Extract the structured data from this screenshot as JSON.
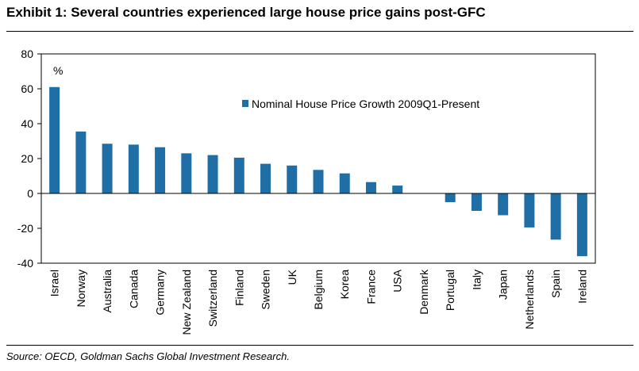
{
  "title": "Exhibit 1: Several countries experienced large house price gains post-GFC",
  "source": "Source: OECD, Goldman Sachs Global Investment Research.",
  "chart_data": {
    "type": "bar",
    "unit_label": "%",
    "categories": [
      "Israel",
      "Norway",
      "Australia",
      "Canada",
      "Germany",
      "New Zealand",
      "Switzerland",
      "Finland",
      "Sweden",
      "UK",
      "Belgium",
      "Korea",
      "France",
      "USA",
      "Denmark",
      "Portugal",
      "Italy",
      "Japan",
      "Netherlands",
      "Spain",
      "Ireland"
    ],
    "series": [
      {
        "name": "Nominal House Price Growth 2009Q1-Present",
        "color": "#1f6fa6",
        "values": [
          61,
          35.5,
          28.5,
          28,
          26.5,
          23,
          22,
          20.5,
          17,
          16,
          13.5,
          11.5,
          6.5,
          4.5,
          0,
          -5,
          -10,
          -12.5,
          -19.5,
          -26.5,
          -36
        ]
      }
    ],
    "ylim": [
      -40,
      80
    ],
    "yticks": [
      "80",
      "60",
      "40",
      "20",
      "0",
      "-20",
      "-40"
    ],
    "ytick_values": [
      80,
      60,
      40,
      20,
      0,
      -20,
      -40
    ],
    "legend_position": "top-right",
    "grid": false
  }
}
